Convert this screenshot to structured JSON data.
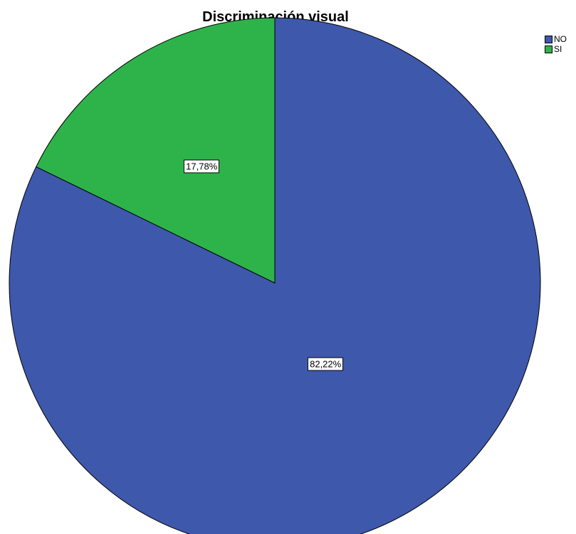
{
  "chart_data": {
    "type": "pie",
    "title": "Discriminación visual",
    "slices": [
      {
        "name": "NO",
        "value": 82.22,
        "label": "82,22%",
        "color": "#3e58ab"
      },
      {
        "name": "SI",
        "value": 17.78,
        "label": "17,78%",
        "color": "#2eb34a"
      }
    ],
    "legend_position": "top-right",
    "start_angle_deg": 0,
    "direction": "clockwise"
  }
}
